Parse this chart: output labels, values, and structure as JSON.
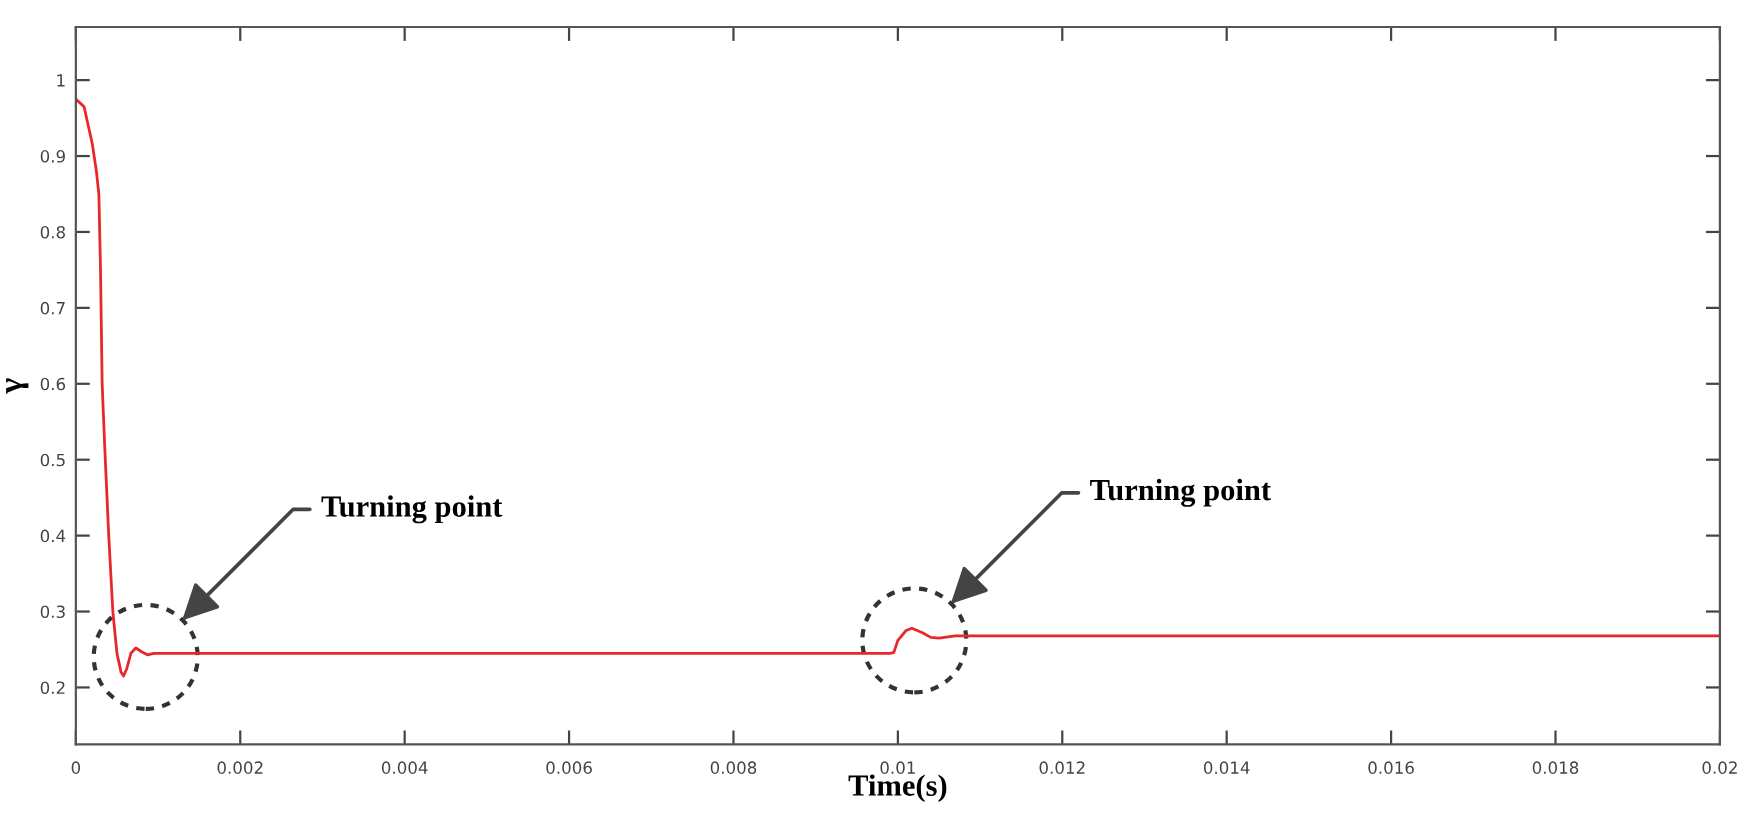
{
  "chart_data": {
    "type": "line",
    "xlabel": "Time(s)",
    "ylabel": "γ",
    "x": [
      0,
      0.0001,
      0.0002,
      0.00025,
      0.00028,
      0.0003,
      0.00032,
      0.00035,
      0.0004,
      0.00045,
      0.0005,
      0.00052,
      0.00055,
      0.00058,
      0.00062,
      0.00067,
      0.00073,
      0.0008,
      0.00087,
      0.00095,
      0.002,
      0.004,
      0.006,
      0.008,
      0.0099,
      0.00995,
      0.01,
      0.0101,
      0.01017,
      0.0103,
      0.0104,
      0.0105,
      0.0107,
      0.011,
      0.012,
      0.014,
      0.016,
      0.018,
      0.02
    ],
    "series": [
      {
        "color": "#e8262b",
        "values": [
          0.975,
          0.965,
          0.916,
          0.88,
          0.85,
          0.75,
          0.6,
          0.52,
          0.4,
          0.3,
          0.245,
          0.235,
          0.22,
          0.215,
          0.225,
          0.245,
          0.252,
          0.247,
          0.243,
          0.245,
          0.245,
          0.245,
          0.245,
          0.245,
          0.245,
          0.246,
          0.262,
          0.275,
          0.278,
          0.272,
          0.266,
          0.265,
          0.268,
          0.268,
          0.268,
          0.268,
          0.268,
          0.268,
          0.268
        ]
      }
    ],
    "xlim": [
      0,
      0.02
    ],
    "ylim": [
      0.125,
      1.07
    ],
    "xticks": [
      0,
      0.002,
      0.004,
      0.006,
      0.008,
      0.01,
      0.012,
      0.014,
      0.016,
      0.018,
      0.02
    ],
    "yticks": [
      0.2,
      0.3,
      0.4,
      0.5,
      0.6,
      0.7,
      0.8,
      0.9,
      1
    ],
    "grid": false,
    "marker": "none",
    "line_style": "solid",
    "annotations": [
      "Turning point",
      "Turning point"
    ]
  }
}
